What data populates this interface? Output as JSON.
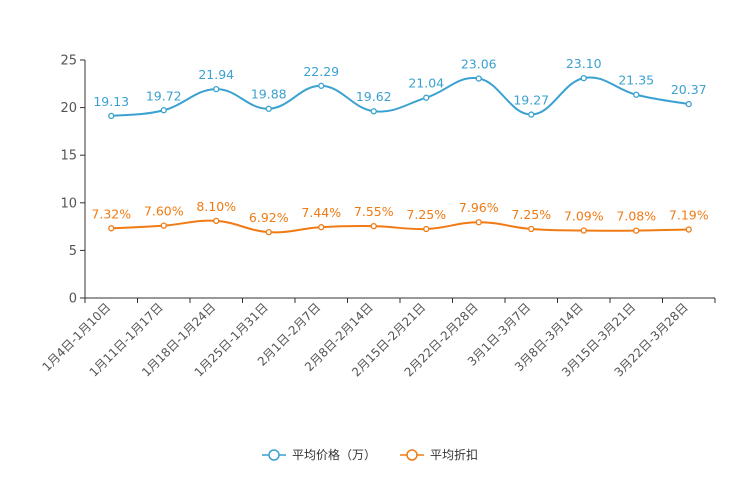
{
  "chart_data": {
    "type": "line",
    "title": "",
    "xlabel": "",
    "ylabel": "",
    "ylim": [
      0,
      25
    ],
    "yticks": [
      0,
      5,
      10,
      15,
      20,
      25
    ],
    "grid": false,
    "legend_position": "bottom-center",
    "categories": [
      "1月4日-1月10日",
      "1月11日-1月17日",
      "1月18日-1月24日",
      "1月25日-1月31日",
      "2月1日-2月7日",
      "2月8日-2月14日",
      "2月15日-2月21日",
      "2月22日-2月28日",
      "3月1日-3月7日",
      "3月8日-3月14日",
      "3月15日-3月21日",
      "3月22日-3月28日"
    ],
    "series": [
      {
        "name": "平均价格（万）",
        "color": "#3ba1d0",
        "values": [
          19.13,
          19.72,
          21.94,
          19.88,
          22.29,
          19.62,
          21.04,
          23.06,
          19.27,
          23.1,
          21.35,
          20.37
        ],
        "labels": [
          "19.13",
          "19.72",
          "21.94",
          "19.88",
          "22.29",
          "19.62",
          "21.04",
          "23.06",
          "19.27",
          "23.10",
          "21.35",
          "20.37"
        ]
      },
      {
        "name": "平均折扣",
        "color": "#f07b14",
        "values": [
          7.32,
          7.6,
          8.1,
          6.92,
          7.44,
          7.55,
          7.25,
          7.96,
          7.25,
          7.09,
          7.08,
          7.19
        ],
        "labels": [
          "7.32%",
          "7.60%",
          "8.10%",
          "6.92%",
          "7.44%",
          "7.55%",
          "7.25%",
          "7.96%",
          "7.25%",
          "7.09%",
          "7.08%",
          "7.19%"
        ]
      }
    ]
  }
}
